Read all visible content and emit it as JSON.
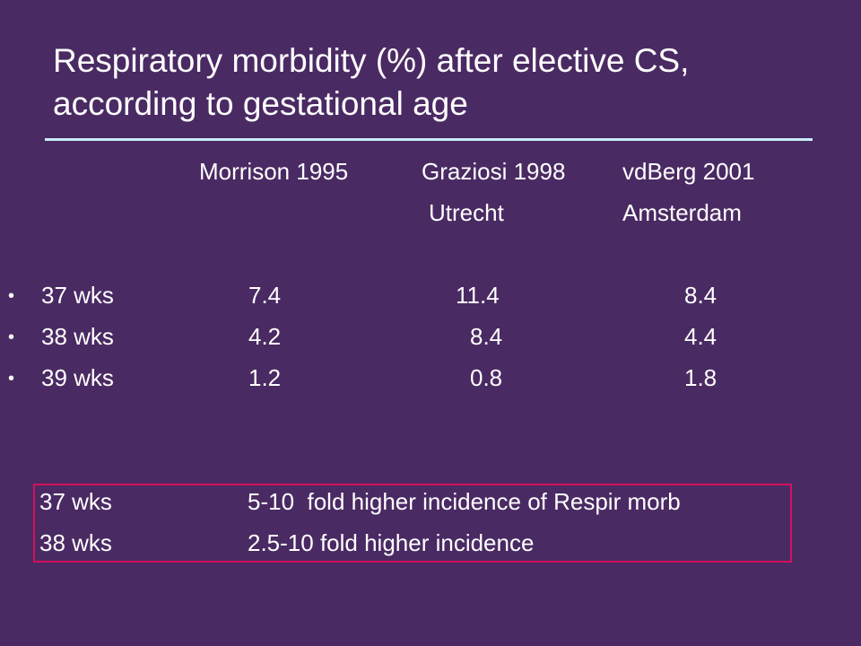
{
  "title": {
    "line1": "Respiratory morbidity (%) after elective CS,",
    "line2": "according to gestational age"
  },
  "columns": [
    {
      "study": "Morrison 1995",
      "place": ""
    },
    {
      "study": "Graziosi 1998",
      "place": "Utrecht"
    },
    {
      "study": "vdBerg 2001",
      "place": "Amsterdam"
    }
  ],
  "bullet_char": "•",
  "rows": [
    {
      "label": "37 wks",
      "values": [
        "7.4",
        "11.4",
        "8.4"
      ]
    },
    {
      "label": "38 wks",
      "values": [
        "4.2",
        "8.4",
        "4.4"
      ]
    },
    {
      "label": "39 wks",
      "values": [
        "1.2",
        "0.8",
        "1.8"
      ]
    }
  ],
  "summary": [
    {
      "label": "37 wks",
      "text": "5-10  fold higher incidence of Respir morb"
    },
    {
      "label": "38 wks",
      "text": "2.5-10 fold higher incidence"
    }
  ],
  "colors": {
    "background": "#4a2a63",
    "text": "#ffffff",
    "rule": "#c8ecf7",
    "box_border": "#d2125a"
  }
}
